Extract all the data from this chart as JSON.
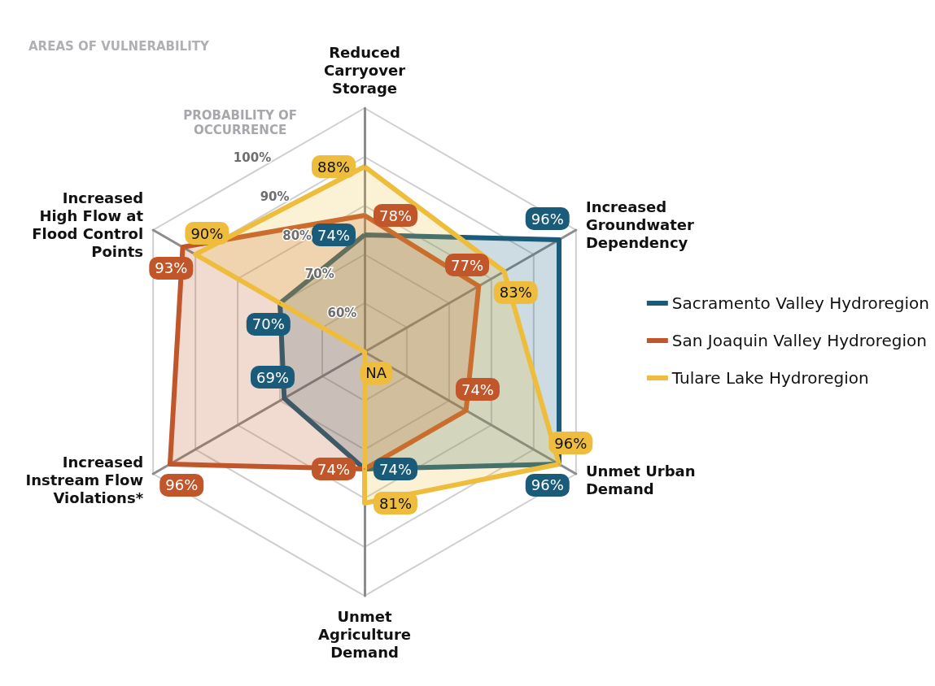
{
  "chart_data": {
    "type": "radar",
    "title": "AREAS OF VULNERABILITY",
    "ylabel": "PROBABILITY OF OCCURRENCE",
    "categories": [
      "Reduced Carryover Storage",
      "Increased Groundwater Dependency",
      "Unmet Urban Demand",
      "Unmet Agriculture Demand",
      "Increased Instream Flow Violations*",
      "Increased High Flow at Flood Control Points"
    ],
    "ylim": [
      50,
      100
    ],
    "yticks": [
      {
        "value": 60,
        "label": "60%"
      },
      {
        "value": 70,
        "label": "70%"
      },
      {
        "value": 80,
        "label": "80%"
      },
      {
        "value": 90,
        "label": "90%"
      },
      {
        "value": 100,
        "label": "100%"
      }
    ],
    "series": [
      {
        "name": "Sacramento Valley Hydroregion",
        "color": "#1a5b7a",
        "values": [
          74,
          96,
          96,
          74,
          69,
          70
        ],
        "value_labels": [
          "74%",
          "96%",
          "96%",
          "74%",
          "69%",
          "70%"
        ]
      },
      {
        "name": "San Joaquin Valley Hydroregion",
        "color": "#c0562a",
        "values": [
          78,
          77,
          74,
          74,
          96,
          93
        ],
        "value_labels": [
          "78%",
          "77%",
          "74%",
          "74%",
          "96%",
          "93%"
        ]
      },
      {
        "name": "Tulare Lake Hydroregion",
        "color": "#efbd3d",
        "values": [
          88,
          83,
          96,
          81,
          null,
          90
        ],
        "value_labels": [
          "88%",
          "83%",
          "96%",
          "81%",
          "NA",
          "90%"
        ]
      }
    ],
    "legend": "right",
    "grid": true
  }
}
